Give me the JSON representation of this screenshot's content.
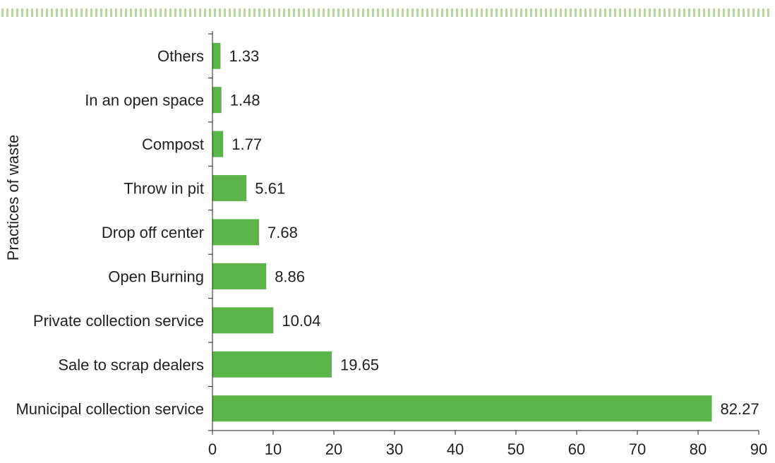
{
  "chart_data": {
    "type": "bar",
    "orientation": "horizontal",
    "categories": [
      "Municipal collection service",
      "Sale to scrap dealers",
      "Private collection service",
      "Open Burning",
      "Drop off center",
      "Throw in pit",
      "Compost",
      "In an open space",
      "Others"
    ],
    "values": [
      82.27,
      19.65,
      10.04,
      8.86,
      7.68,
      5.61,
      1.77,
      1.48,
      1.33
    ],
    "value_labels": [
      "82.27",
      "19.65",
      "10.04",
      "8.86",
      "7.68",
      "5.61",
      "1.77",
      "1.48",
      "1.33"
    ],
    "title": "",
    "xlabel": "",
    "ylabel": "Practices of waste",
    "xlim": [
      0,
      90
    ],
    "ticks": [
      "0",
      "10",
      "20",
      "30",
      "40",
      "50",
      "60",
      "70",
      "80",
      "90"
    ],
    "grid": false,
    "legend": "none",
    "colors": {
      "bar": "#5cb548",
      "axis": "#231f20",
      "decor": "#b5d99c"
    }
  }
}
